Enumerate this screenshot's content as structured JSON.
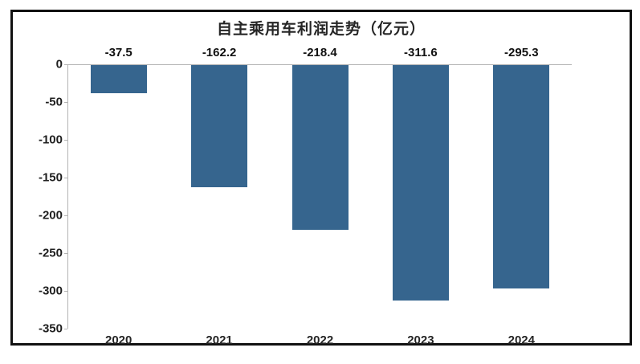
{
  "chart_data": {
    "type": "bar",
    "title": "自主乘用车利润走势（亿元）",
    "categories": [
      "2020",
      "2021",
      "2022",
      "2023",
      "2024"
    ],
    "values": [
      -37.5,
      -162.2,
      -218.4,
      -311.6,
      -295.3
    ],
    "value_labels": [
      "-37.5",
      "-162.2",
      "-218.4",
      "-311.6",
      "-295.3"
    ],
    "y_ticks": [
      "0",
      "-50",
      "-100",
      "-150",
      "-200",
      "-250",
      "-300",
      "-350"
    ],
    "y_tick_values": [
      0,
      -50,
      -100,
      -150,
      -200,
      -250,
      -300,
      -350
    ],
    "ylim": [
      -350,
      0
    ],
    "xlabel": "",
    "ylabel": "",
    "grid": false,
    "legend_position": "none",
    "colors": {
      "bar": "#36658E",
      "axis": "#b3b3b3",
      "text": "#1f1f1f",
      "frame": "#111111",
      "background": "#ffffff"
    }
  }
}
